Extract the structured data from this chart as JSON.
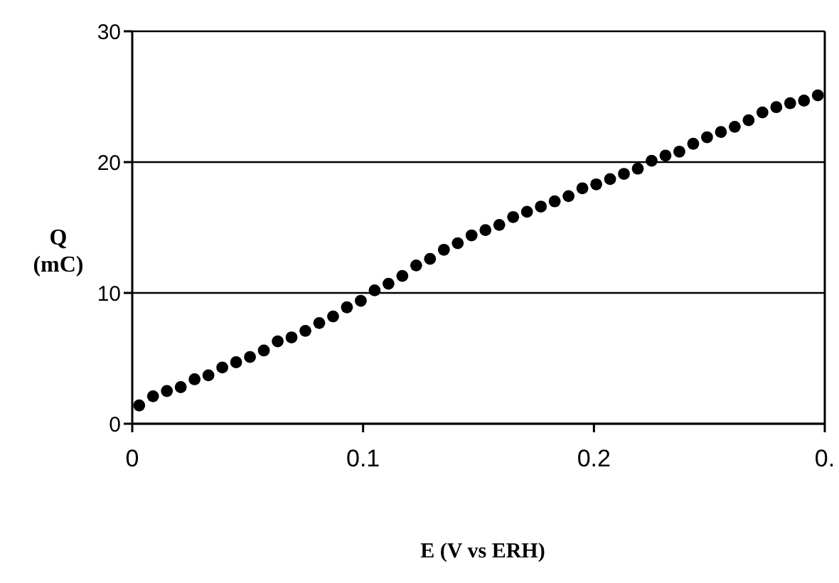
{
  "chart_data": {
    "type": "scatter",
    "xlabel": "E (V vs ERH)",
    "ylabel": "Q\n(mC)",
    "x": [
      0.003,
      0.009,
      0.015,
      0.021,
      0.027,
      0.033,
      0.039,
      0.045,
      0.051,
      0.057,
      0.063,
      0.069,
      0.075,
      0.081,
      0.087,
      0.093,
      0.099,
      0.105,
      0.111,
      0.117,
      0.123,
      0.129,
      0.135,
      0.141,
      0.147,
      0.153,
      0.159,
      0.165,
      0.171,
      0.177,
      0.183,
      0.189,
      0.195,
      0.201,
      0.207,
      0.213,
      0.219,
      0.225,
      0.231,
      0.237,
      0.243,
      0.249,
      0.255,
      0.261,
      0.267,
      0.273,
      0.279,
      0.285,
      0.291,
      0.297
    ],
    "series": [
      {
        "color": "#000000",
        "values": [
          1.4,
          2.1,
          2.5,
          2.8,
          3.4,
          3.7,
          4.3,
          4.7,
          5.1,
          5.6,
          6.3,
          6.6,
          7.1,
          7.7,
          8.2,
          8.9,
          9.4,
          10.2,
          10.7,
          11.3,
          12.1,
          12.6,
          13.3,
          13.8,
          14.4,
          14.8,
          15.2,
          15.8,
          16.2,
          16.6,
          17.0,
          17.4,
          18.0,
          18.3,
          18.7,
          19.1,
          19.5,
          20.1,
          20.5,
          20.8,
          21.4,
          21.9,
          22.3,
          22.7,
          23.2,
          23.8,
          24.2,
          24.5,
          24.7,
          25.1
        ]
      }
    ],
    "xlim": [
      0,
      0.3
    ],
    "xticks": [
      0,
      0.1,
      0.2,
      {
        "value": 0.3,
        "label": "0."
      }
    ],
    "ylim": [
      0,
      30
    ],
    "yticks": [
      0,
      10,
      20,
      30
    ],
    "grid": "y",
    "marker": "circle",
    "legend": false
  }
}
